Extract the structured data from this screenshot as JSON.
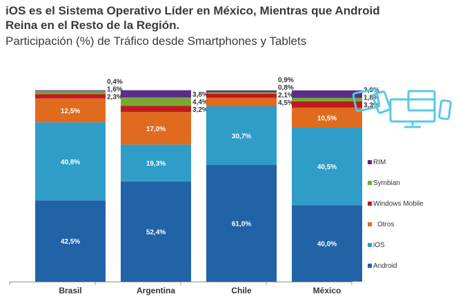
{
  "header": {
    "title_line1": "iOS es el Sistema Operativo Líder  en México, Mientras que Android",
    "title_line2": "Reina en el Resto de la Región.",
    "subtitle": "Participación (%) de Tráfico desde Smartphones y Tablets"
  },
  "chart_data": {
    "type": "bar",
    "stacked": true,
    "categories": [
      "Brasil",
      "Argentina",
      "Chile",
      "México"
    ],
    "series": [
      {
        "name": "Android",
        "color": "#2263a8",
        "values": [
          42.5,
          52.4,
          61.0,
          40.0
        ],
        "labels": [
          "42,5%",
          "52,4%",
          "61,0%",
          "40,0%"
        ]
      },
      {
        "name": "iOS",
        "color": "#2f9dc7",
        "values": [
          40.8,
          19.3,
          30.7,
          40.5
        ],
        "labels": [
          "40,8%",
          "19,3%",
          "30,7%",
          "40,5%"
        ]
      },
      {
        "name": "Otros",
        "color": "#e06b1f",
        "values": [
          12.5,
          17.0,
          4.5,
          10.5
        ],
        "labels": [
          "12,5%",
          "17,0%",
          "4,5%",
          "10,5%"
        ]
      },
      {
        "name": "Windows Mobile",
        "color": "#c0191f",
        "values": [
          2.3,
          3.2,
          2.1,
          3.3
        ],
        "labels": [
          "2,3%",
          "3,2%",
          "2,1%",
          "3,3%"
        ]
      },
      {
        "name": "Symbian",
        "color": "#78a832",
        "values": [
          1.6,
          4.4,
          0.8,
          1.8
        ],
        "labels": [
          "1,6%",
          "4,4%",
          "0,8%",
          "1,8%"
        ]
      },
      {
        "name": "RIM",
        "color": "#5a2d8a",
        "values": [
          0.4,
          3.8,
          0.9,
          3.9
        ],
        "labels": [
          "0,4%",
          "3,8%",
          "0,9%",
          "3,9%"
        ]
      }
    ],
    "legend": {
      "placement": "right",
      "order": [
        "RIM",
        "Symbian",
        "Windows Mobile",
        "Otros",
        "iOS",
        "Android"
      ]
    },
    "ylim": [
      0,
      100
    ],
    "grid": false
  },
  "device_icon": "smartphone-tablet-desktop-icon",
  "device_icon_color": "#55c8e6"
}
